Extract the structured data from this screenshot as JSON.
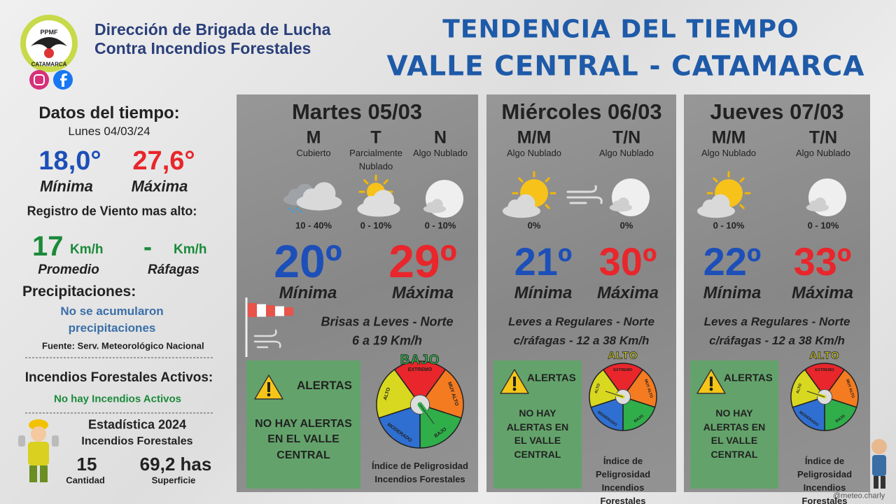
{
  "header": {
    "logo_name": "PPMF",
    "logo_place": "CATAMARCA",
    "org_line1": "Dirección de Brigada de Lucha",
    "org_line2": "Contra Incendios Forestales",
    "title_line1": "TENDENCIA DEL TIEMPO",
    "title_line2": "VALLE CENTRAL - CATAMARCA"
  },
  "sidebar": {
    "title": "Datos del tiempo:",
    "date": "Lunes 04/03/24",
    "min": "18,0°",
    "max": "27,6°",
    "min_label": "Mínima",
    "max_label": "Máxima",
    "wind_title": "Registro de Viento mas alto:",
    "wind_avg": "17",
    "wind_avg_unit": "Km/h",
    "wind_gust": "-",
    "wind_gust_unit": "Km/h",
    "wind_avg_label": "Promedio",
    "wind_gust_label": "Ráfagas",
    "precip_title": "Precipitaciones:",
    "precip_lines": [
      "No se acumularon",
      "precipitaciones"
    ],
    "source": "Fuente: Serv. Meteorológico Nacional",
    "fires_title": "Incendios Forestales Activos:",
    "fires_text": "No hay Incendios Activos",
    "stats_title": "Estadística 2024",
    "stats_subtitle": "Incendios Forestales",
    "count": "15",
    "count_label": "Cantidad",
    "area": "69,2 has",
    "area_label": "Superficie"
  },
  "days": [
    {
      "title": "Martes 05/03",
      "periods": [
        {
          "label": "M",
          "sky": "Cubierto",
          "precip": "10 - 40%"
        },
        {
          "label": "T",
          "sky": "Parcialmente Nublado",
          "precip": "0 - 10%"
        },
        {
          "label": "N",
          "sky": "Algo Nublado",
          "precip": "0 - 10%"
        }
      ],
      "min": "20º",
      "min_label": "Mínima",
      "max": "29º",
      "max_label": "Máxima",
      "wind_lines": [
        "Brisas a Leves - Norte",
        "6 a 19 Km/h"
      ],
      "alert_title": "ALERTAS",
      "alert_text": "NO HAY ALERTAS EN EL VALLE CENTRAL",
      "danger_level": "BAJO",
      "gauge_labels": [
        "EXTREMO",
        "MUY ALTO",
        "BAJO",
        "MODERADO",
        "ALTO"
      ],
      "index_text": "Índice de Peligrosidad Incendios Forestales"
    },
    {
      "title": "Miércoles 06/03",
      "periods": [
        {
          "label": "M/M",
          "sky": "Algo Nublado",
          "precip": "0%"
        },
        {
          "label": "T/N",
          "sky": "Algo Nublado",
          "precip": "0%"
        }
      ],
      "min": "21º",
      "min_label": "Mínima",
      "max": "30º",
      "max_label": "Máxima",
      "wind_lines": [
        "Leves a Regulares - Norte",
        "c/ráfagas - 12 a 38 Km/h"
      ],
      "alert_title": "ALERTAS",
      "alert_text": "NO HAY ALERTAS EN EL VALLE CENTRAL",
      "danger_level": "ALTO",
      "gauge_labels": [
        "EXTREMO",
        "MUY ALTO",
        "BAJO",
        "MODERADO",
        "ALTO"
      ],
      "index_text": "Índice de Peligrosidad Incendios Forestales"
    },
    {
      "title": "Jueves 07/03",
      "periods": [
        {
          "label": "M/M",
          "sky": "Algo Nublado",
          "precip": "0 - 10%"
        },
        {
          "label": "T/N",
          "sky": "Algo Nublado",
          "precip": "0 - 10%"
        }
      ],
      "min": "22º",
      "min_label": "Mínima",
      "max": "33º",
      "max_label": "Máxima",
      "wind_lines": [
        "Leves a Regulares - Norte",
        "c/ráfagas - 12 a 38 Km/h"
      ],
      "alert_title": "ALERTAS",
      "alert_text": "NO HAY ALERTAS EN EL VALLE CENTRAL",
      "danger_level": "ALTO",
      "gauge_labels": [
        "EXTREMO",
        "MUY ALTO",
        "BAJO",
        "MODERADO",
        "ALTO"
      ],
      "index_text": "Índice de Peligrosidad Incendios Forestales"
    }
  ],
  "footer": {
    "handle": "@meteo.charly"
  }
}
